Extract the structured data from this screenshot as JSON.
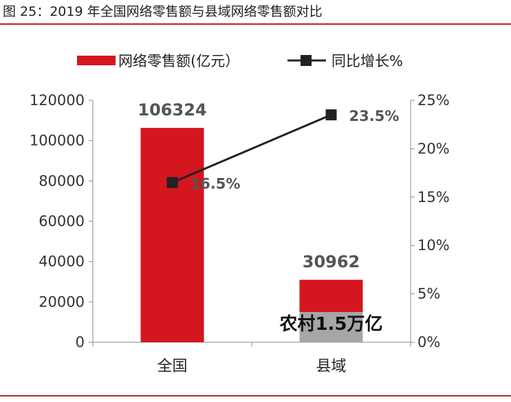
{
  "figure_title": "图 25：2019 年全国网络零售额与县域网络零售额对比",
  "colors": {
    "bar": "#d4161e",
    "bar_sub": "#a6a6a6",
    "line": "#222222",
    "rule": "#b22a2a"
  },
  "chart_data": {
    "type": "bar+line",
    "categories": [
      "全国",
      "县域"
    ],
    "series": [
      {
        "name": "网络零售额(亿元）",
        "type": "bar",
        "axis": "left",
        "values": [
          106324,
          30962
        ],
        "labels": [
          "106324",
          "30962"
        ]
      },
      {
        "name": "同比增长%",
        "type": "line",
        "axis": "right",
        "values": [
          16.5,
          23.5
        ],
        "labels": [
          "16.5%",
          "23.5%"
        ]
      }
    ],
    "sub_bar": {
      "category": "县域",
      "value": 15000,
      "label": "农村1.5万亿"
    },
    "left_axis": {
      "ylim": [
        0,
        120000
      ],
      "ticks": [
        "0",
        "20000",
        "40000",
        "60000",
        "80000",
        "100000",
        "120000"
      ]
    },
    "right_axis": {
      "ylim": [
        0,
        25
      ],
      "ticks": [
        "0%",
        "5%",
        "10%",
        "15%",
        "20%",
        "25%"
      ]
    },
    "legend_position": "top"
  }
}
